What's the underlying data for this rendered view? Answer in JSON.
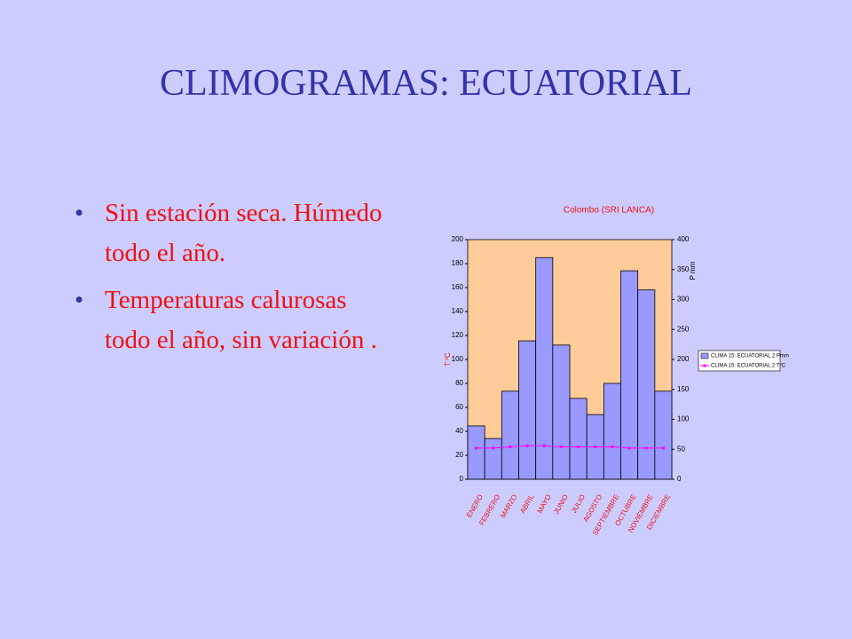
{
  "slide": {
    "title": "CLIMOGRAMAS: ECUATORIAL",
    "bullets": [
      "Sin estación seca. Húmedo todo el año.",
      "Temperaturas calurosas todo el año, sin variación ."
    ]
  },
  "chart_data": {
    "type": "bar",
    "title": "Colombo (SRI LANCA)",
    "categories": [
      "ENERO",
      "FEBRERO",
      "MARZO",
      "ABRIL",
      "MAYO",
      "JUNIO",
      "JULIO",
      "AGOSTO",
      "SEPTIEMBRE",
      "OCTUBRE",
      "NOVIEMBRE",
      "DICIEMBRE"
    ],
    "series": [
      {
        "name": "CLIMA 15: ECUATORIAL 2 Pmm",
        "type": "bar",
        "axis": "y2",
        "color": "#9999ff",
        "values": [
          89,
          68,
          147,
          231,
          370,
          224,
          135,
          108,
          160,
          348,
          316,
          147
        ]
      },
      {
        "name": "CLIMA 15: ECUATORIAL 2 TºC",
        "type": "line",
        "color": "#ff00ff",
        "values": [
          26,
          26,
          27,
          28,
          28,
          27,
          27,
          27,
          27,
          26,
          26,
          26
        ]
      }
    ],
    "y_label": "T ºC",
    "y2_label": "P mm",
    "ylim": [
      0,
      200
    ],
    "yticks": [
      0,
      20,
      40,
      60,
      80,
      100,
      120,
      140,
      160,
      180,
      200
    ],
    "y2lim": [
      0,
      400
    ],
    "y2ticks": [
      0,
      50,
      100,
      150,
      200,
      250,
      300,
      350,
      400
    ],
    "plot_color": "#ffcc99",
    "legend": "right"
  }
}
